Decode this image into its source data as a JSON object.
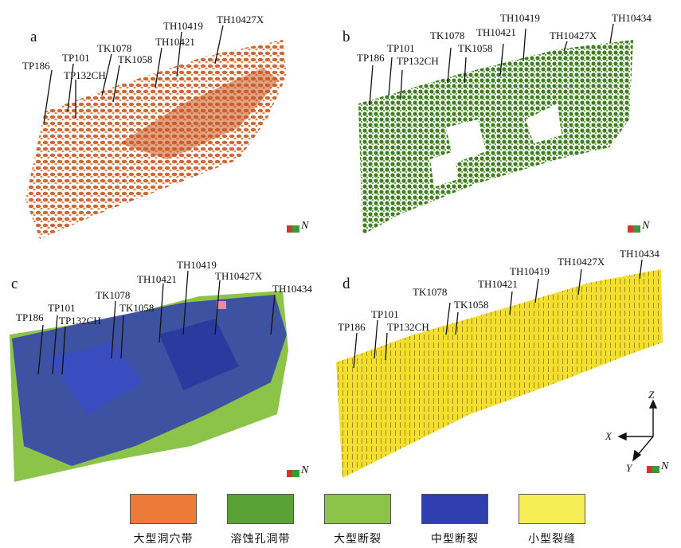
{
  "panels": [
    {
      "label": "a",
      "color": "#d2612a",
      "wells": [
        "TP186",
        "TP101",
        "TP132CH",
        "TK1078",
        "TK1058",
        "TH10421",
        "TH10419",
        "TH10427X"
      ]
    },
    {
      "label": "b",
      "color": "#4f8f2c",
      "wells": [
        "TP186",
        "TP101",
        "TP132CH",
        "TK1078",
        "TK1058",
        "TH10421",
        "TH10419",
        "TH10427X",
        "TH10434"
      ]
    },
    {
      "label": "c",
      "color": "#2f3fb0",
      "wells": [
        "TP186",
        "TP101",
        "TP132CH",
        "TK1078",
        "TK1058",
        "TH10421",
        "TH10419",
        "TH10427X",
        "TH10434"
      ]
    },
    {
      "label": "d",
      "color": "#f4e23a",
      "wells": [
        "TP186",
        "TP101",
        "TP132CH",
        "TK1078",
        "TK1058",
        "TH10421",
        "TH10419",
        "TH10427X",
        "TH10434"
      ]
    }
  ],
  "compass": {
    "north": "N"
  },
  "axes": {
    "x": "X",
    "y": "Y",
    "z": "Z"
  },
  "legend": [
    {
      "label": "大型洞穴带",
      "color": "#ee7a3a"
    },
    {
      "label": "溶蚀孔洞带",
      "color": "#5ba236"
    },
    {
      "label": "大型断裂",
      "color": "#8cc44a"
    },
    {
      "label": "中型断裂",
      "color": "#2f3fb0"
    },
    {
      "label": "小型裂缝",
      "color": "#f7ee55"
    }
  ]
}
